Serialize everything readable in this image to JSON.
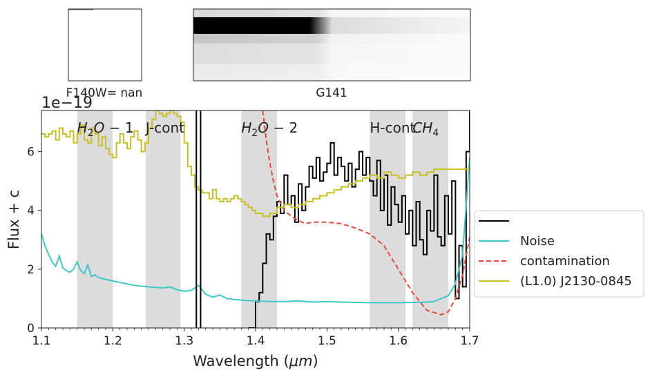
{
  "chart_data": {
    "type": "line",
    "xlabel": "Wavelength ($\\mu m$)",
    "ylabel": "Flux + c",
    "offset_text": "1e−19",
    "xlim": [
      1.1,
      1.7
    ],
    "ylim": [
      0,
      7.4
    ],
    "x_ticks": [
      1.1,
      1.2,
      1.3,
      1.4,
      1.5,
      1.6,
      1.7
    ],
    "x_tick_labels": [
      "1.1",
      "1.2",
      "1.3",
      "1.4",
      "1.5",
      "1.6",
      "1.7"
    ],
    "y_ticks": [
      0,
      2,
      4,
      6
    ],
    "y_tick_labels": [
      "0",
      "2",
      "4",
      "6"
    ],
    "grid": false,
    "legend_position": "outside-right",
    "bands": [
      {
        "x0": 1.15,
        "x1": 1.2,
        "label": "H2O − 1",
        "label_x": 1.15
      },
      {
        "x0": 1.246,
        "x1": 1.295,
        "label": "J-cont",
        "label_x": 1.246
      },
      {
        "x0": 1.38,
        "x1": 1.43,
        "label": "H2O − 2",
        "label_x": 1.38
      },
      {
        "x0": 1.56,
        "x1": 1.61,
        "label": "H-cont",
        "label_x": 1.56
      },
      {
        "x0": 1.62,
        "x1": 1.67,
        "label": "CH4",
        "label_x": 1.62
      }
    ],
    "vlines": [
      1.317,
      1.323
    ],
    "series": [
      {
        "name": "",
        "color": "#000000",
        "style": "step",
        "x": [
          1.39,
          1.4,
          1.405,
          1.41,
          1.415,
          1.42,
          1.425,
          1.43,
          1.435,
          1.44,
          1.445,
          1.45,
          1.455,
          1.46,
          1.465,
          1.47,
          1.475,
          1.48,
          1.485,
          1.49,
          1.495,
          1.5,
          1.505,
          1.51,
          1.515,
          1.52,
          1.525,
          1.53,
          1.535,
          1.54,
          1.545,
          1.55,
          1.555,
          1.56,
          1.565,
          1.57,
          1.575,
          1.58,
          1.585,
          1.59,
          1.595,
          1.6,
          1.605,
          1.61,
          1.615,
          1.62,
          1.625,
          1.63,
          1.635,
          1.64,
          1.645,
          1.65,
          1.655,
          1.66,
          1.665,
          1.67,
          1.675,
          1.68,
          1.685,
          1.69,
          1.695,
          1.7
        ],
        "y": [
          0.0,
          0.9,
          1.2,
          2.2,
          3.2,
          3.0,
          3.8,
          4.3,
          3.9,
          5.2,
          4.2,
          4.5,
          3.6,
          4.9,
          4.0,
          4.8,
          5.5,
          5.1,
          5.8,
          5.0,
          5.3,
          5.6,
          6.3,
          5.2,
          5.8,
          5.5,
          5.0,
          5.6,
          4.8,
          5.4,
          6.0,
          5.2,
          5.8,
          5.0,
          4.5,
          5.7,
          4.0,
          5.2,
          3.5,
          4.8,
          4.2,
          3.6,
          4.5,
          3.2,
          4.0,
          2.8,
          4.3,
          3.0,
          2.5,
          4.0,
          3.3,
          5.2,
          3.1,
          2.8,
          4.5,
          3.2,
          5.0,
          1.0,
          2.8,
          1.4,
          6.0,
          7.4
        ]
      },
      {
        "name": "Noise",
        "color": "#3cc8c8",
        "style": "line",
        "x": [
          1.1,
          1.105,
          1.11,
          1.115,
          1.12,
          1.125,
          1.13,
          1.135,
          1.14,
          1.145,
          1.15,
          1.155,
          1.16,
          1.165,
          1.17,
          1.175,
          1.18,
          1.19,
          1.2,
          1.21,
          1.22,
          1.23,
          1.24,
          1.25,
          1.26,
          1.27,
          1.28,
          1.29,
          1.3,
          1.31,
          1.32,
          1.33,
          1.34,
          1.35,
          1.36,
          1.37,
          1.38,
          1.39,
          1.4,
          1.42,
          1.44,
          1.46,
          1.48,
          1.5,
          1.52,
          1.54,
          1.56,
          1.58,
          1.6,
          1.62,
          1.63,
          1.64,
          1.65,
          1.66,
          1.67,
          1.68,
          1.69,
          1.7
        ],
        "y": [
          3.2,
          2.8,
          2.5,
          2.25,
          2.1,
          2.45,
          2.05,
          1.95,
          1.9,
          2.0,
          2.25,
          1.95,
          1.85,
          2.15,
          1.75,
          1.8,
          1.72,
          1.65,
          1.6,
          1.55,
          1.5,
          1.45,
          1.42,
          1.4,
          1.38,
          1.36,
          1.4,
          1.3,
          1.25,
          1.28,
          1.45,
          1.15,
          1.05,
          1.12,
          1.0,
          0.97,
          0.95,
          0.93,
          0.92,
          0.9,
          0.9,
          0.92,
          0.88,
          0.9,
          0.88,
          0.87,
          0.86,
          0.86,
          0.86,
          0.87,
          0.87,
          0.88,
          0.9,
          1.0,
          1.1,
          1.5,
          2.5,
          5.8
        ]
      },
      {
        "name": "contamination",
        "color": "#e8483a",
        "style": "dashed",
        "x": [
          1.41,
          1.415,
          1.42,
          1.425,
          1.43,
          1.44,
          1.45,
          1.46,
          1.47,
          1.48,
          1.5,
          1.52,
          1.54,
          1.56,
          1.58,
          1.6,
          1.62,
          1.64,
          1.66,
          1.67,
          1.68,
          1.69,
          1.7
        ],
        "y": [
          7.4,
          6.4,
          5.6,
          5.0,
          4.5,
          4.0,
          3.8,
          3.65,
          3.55,
          3.6,
          3.6,
          3.55,
          3.4,
          3.2,
          2.8,
          2.0,
          1.2,
          0.6,
          0.45,
          0.55,
          1.0,
          1.8,
          3.1
        ]
      },
      {
        "name": "(L1.0) J2130-0845",
        "color": "#c8c020",
        "style": "step",
        "x": [
          1.1,
          1.105,
          1.11,
          1.115,
          1.12,
          1.125,
          1.13,
          1.135,
          1.14,
          1.145,
          1.15,
          1.155,
          1.16,
          1.165,
          1.17,
          1.175,
          1.18,
          1.185,
          1.19,
          1.195,
          1.2,
          1.205,
          1.21,
          1.215,
          1.22,
          1.225,
          1.23,
          1.235,
          1.24,
          1.245,
          1.25,
          1.255,
          1.26,
          1.265,
          1.27,
          1.275,
          1.28,
          1.285,
          1.29,
          1.295,
          1.3,
          1.305,
          1.31,
          1.315,
          1.32,
          1.325,
          1.33,
          1.335,
          1.34,
          1.345,
          1.35,
          1.355,
          1.36,
          1.365,
          1.37,
          1.375,
          1.38,
          1.385,
          1.39,
          1.395,
          1.4,
          1.41,
          1.42,
          1.43,
          1.44,
          1.45,
          1.46,
          1.47,
          1.48,
          1.49,
          1.5,
          1.51,
          1.52,
          1.53,
          1.54,
          1.55,
          1.56,
          1.57,
          1.58,
          1.59,
          1.6,
          1.61,
          1.62,
          1.63,
          1.64,
          1.65,
          1.66,
          1.67,
          1.68,
          1.69,
          1.7
        ],
        "y": [
          6.6,
          6.5,
          6.6,
          6.7,
          6.4,
          6.8,
          6.6,
          6.5,
          6.7,
          6.3,
          6.6,
          6.9,
          6.4,
          6.3,
          6.8,
          6.6,
          6.2,
          6.5,
          6.1,
          5.9,
          5.8,
          6.3,
          6.6,
          6.3,
          6.1,
          6.5,
          6.7,
          6.4,
          6.0,
          6.3,
          6.8,
          7.1,
          7.4,
          7.3,
          7.2,
          7.3,
          7.4,
          7.3,
          7.2,
          7.0,
          6.3,
          5.5,
          5.2,
          4.8,
          4.7,
          4.6,
          4.6,
          4.4,
          4.7,
          4.4,
          4.3,
          4.4,
          4.3,
          4.4,
          4.5,
          4.4,
          4.3,
          4.2,
          4.1,
          4.0,
          3.9,
          3.8,
          3.9,
          4.1,
          4.2,
          4.1,
          4.2,
          4.3,
          4.4,
          4.5,
          4.6,
          4.7,
          4.8,
          4.9,
          5.0,
          5.1,
          5.2,
          5.1,
          5.3,
          5.2,
          5.1,
          5.2,
          5.3,
          5.2,
          5.3,
          5.4,
          5.4,
          5.4,
          5.4,
          5.4,
          5.3
        ]
      }
    ]
  },
  "thumbnails": [
    {
      "caption": "F140W= nan"
    },
    {
      "caption": "G141"
    }
  ]
}
